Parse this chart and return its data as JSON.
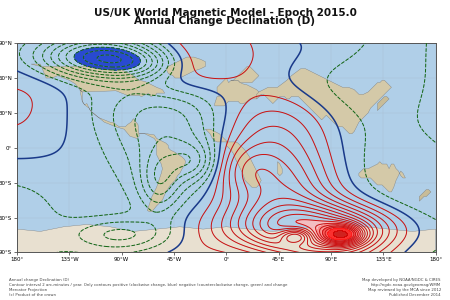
{
  "title_line1": "US/UK World Magnetic Model - Epoch 2015.0",
  "title_line2": "Annual Change Declination (D)",
  "title_fontsize": 7.5,
  "map_xlim": [
    -180,
    180
  ],
  "map_ylim": [
    -90,
    90
  ],
  "map_bg_color": "#b0cfe8",
  "land_color": "#d4c9a8",
  "fig_bg_color": "#ffffff",
  "border_color": "#555555",
  "footer_left": "Annual change Declination (D)\nContour interval 2 arc-minutes / year. Only contours positive (clockwise change, blue) negative (counterclockwise change, green) and change\nMercator Projection\n(c) Product of the crown",
  "footer_right": "Map developed by NOAA/NGDC & CIRES\nhttp://ngdc.noaa.gov/geomag/WMM\nMap reviewed by the MCA since 2012\nPublished December 2014",
  "tick_fontsize": 4,
  "contour_thin_color": "#8899aa",
  "contour_zero_color": "#1a3a8a",
  "contour_pos_color": "#cc1111",
  "contour_neg_color": "#116611",
  "contour_linewidth": 0.7,
  "contour_zero_linewidth": 1.1,
  "contour_thin_linewidth": 0.3
}
